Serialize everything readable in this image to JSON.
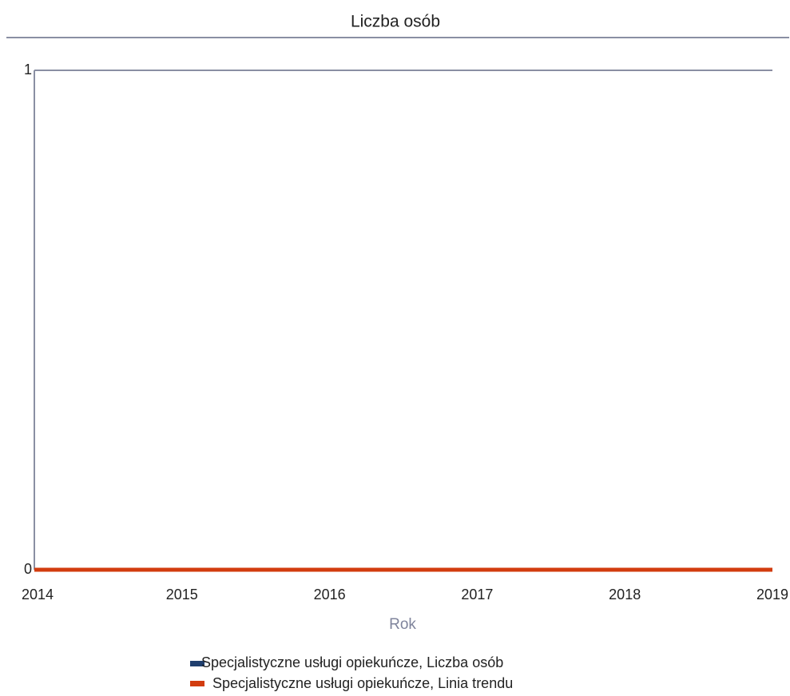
{
  "chart_data": {
    "type": "line",
    "title": "Liczba osób",
    "x_label": "Rok",
    "x": [
      2014,
      2015,
      2016,
      2017,
      2018,
      2019
    ],
    "xlim": [
      2014,
      2019
    ],
    "xticks": [
      2014,
      2015,
      2016,
      2017,
      2018,
      2019
    ],
    "ylim": [
      0,
      1
    ],
    "yticks": [
      0,
      1
    ],
    "grid": true,
    "series": [
      {
        "name": "Specjalistyczne usługi opiekuńcze, Liczba osób",
        "color": "#1f3f6e",
        "values": [
          0,
          0,
          0,
          0,
          0,
          0
        ]
      },
      {
        "name": "Specjalistyczne usługi opiekuńcze, Linia trendu",
        "color": "#d23c0f",
        "values": [
          0,
          0,
          0,
          0,
          0,
          0
        ]
      }
    ]
  }
}
